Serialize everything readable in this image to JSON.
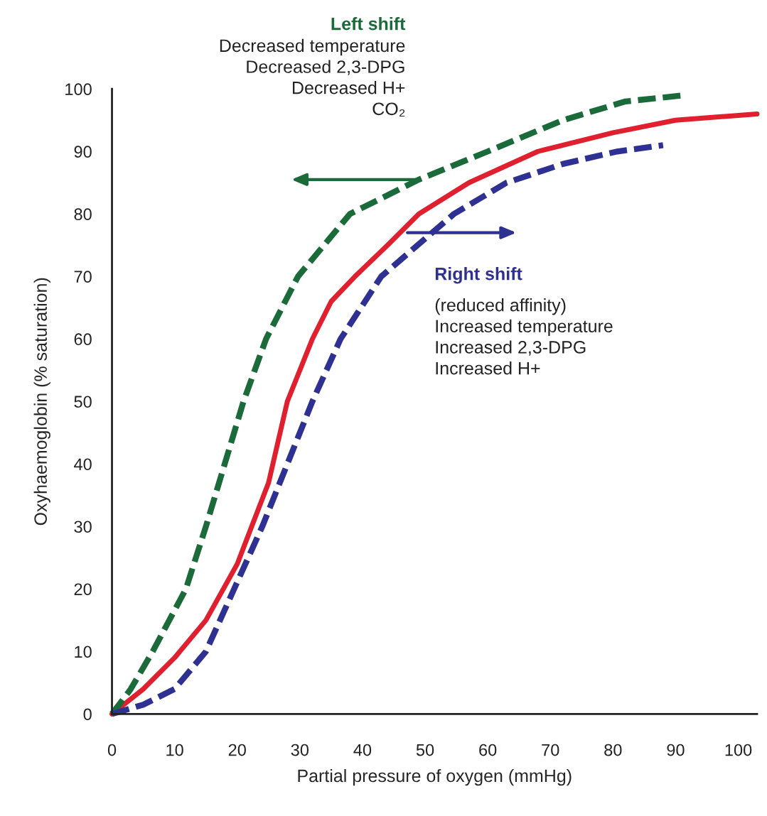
{
  "chart_data": {
    "type": "line",
    "xlabel": "Partial pressure of oxygen (mmHg)",
    "ylabel": "Oxyhaemoglobin (% saturation)",
    "xlim": [
      0,
      103
    ],
    "xticks": [
      0,
      10,
      20,
      30,
      40,
      50,
      60,
      70,
      80,
      90,
      100
    ],
    "ylim": [
      0,
      100
    ],
    "yticks": [
      0,
      10,
      20,
      30,
      40,
      50,
      60,
      70,
      80,
      90,
      100
    ],
    "grid": false,
    "legend": false,
    "marker": "none",
    "series": [
      {
        "color": "#e0202e",
        "line_style": "solid",
        "x": [
          0,
          5,
          10,
          15,
          20,
          25,
          28,
          32,
          35,
          38.8,
          44,
          49,
          57,
          68,
          80,
          90,
          103
        ],
        "values": [
          0,
          4,
          9,
          15,
          24,
          37,
          50,
          60,
          66,
          70,
          75,
          80,
          85,
          90,
          93,
          95,
          96
        ]
      },
      {
        "color": "#1b6b3a",
        "line_style": "dashed",
        "x": [
          0,
          3,
          6.5,
          11.8,
          15,
          18,
          21,
          24.6,
          29.7,
          38,
          49,
          60,
          72,
          82,
          91.5
        ],
        "values": [
          0,
          4,
          10,
          20,
          30,
          40,
          50,
          60,
          70,
          80,
          85.5,
          90,
          95,
          98,
          99
        ]
      },
      {
        "color": "#2e3192",
        "line_style": "dashed",
        "x": [
          0,
          5,
          10,
          15,
          19.5,
          24,
          28,
          32,
          36.5,
          43,
          54.6,
          63,
          72,
          80.7,
          88
        ],
        "values": [
          0,
          1.5,
          4,
          10,
          20,
          30,
          40,
          50,
          60,
          70,
          80,
          85,
          88,
          90,
          91
        ]
      }
    ],
    "annotations": [
      "Left shift",
      "Decreased temperature\nDecreased 2,3-DPG\nDecreased H+\nCO₂",
      "Right shift",
      "(reduced affinity)\nIncreased temperature\nIncreased 2,3-DPG\nIncreased H+"
    ]
  }
}
